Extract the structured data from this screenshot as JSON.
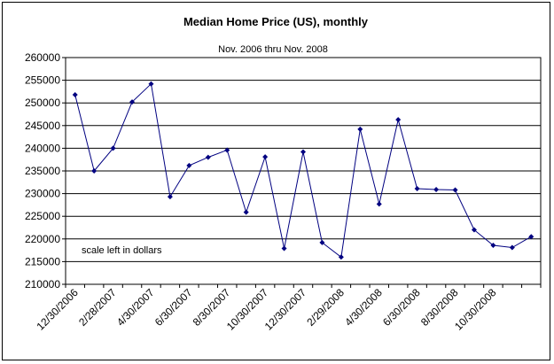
{
  "chart_data": {
    "type": "line",
    "title": "Median Home Price (US), monthly",
    "subtitle": "Nov. 2006 thru Nov. 2008",
    "annotation": "scale left in dollars",
    "xlabel": "",
    "ylabel": "",
    "ylim": [
      210000,
      260000
    ],
    "ytick_step": 5000,
    "grid": true,
    "legend": "none",
    "line_color": "#000080",
    "x_tick_labels": [
      "12/30/2006",
      "2/28/2007",
      "4/30/2007",
      "6/30/2007",
      "8/30/2007",
      "10/30/2007",
      "12/30/2007",
      "2/29/2008",
      "4/30/2008",
      "6/30/2008",
      "8/30/2008",
      "10/30/2008"
    ],
    "series": [
      {
        "name": "Median Home Price",
        "values": [
          251800,
          235000,
          240000,
          250200,
          254200,
          229300,
          236200,
          238000,
          239600,
          225900,
          238100,
          217900,
          239200,
          219200,
          216000,
          244200,
          227700,
          246300,
          231100,
          230900,
          230800,
          222000,
          218600,
          218100,
          220500
        ]
      }
    ]
  }
}
